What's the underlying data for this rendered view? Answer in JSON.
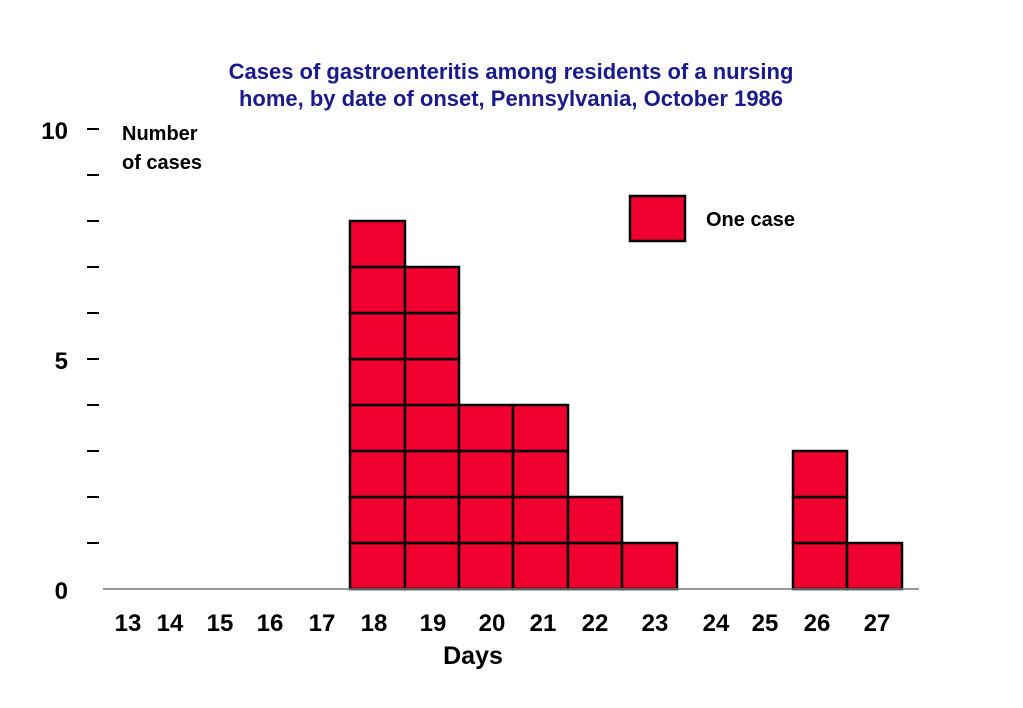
{
  "chart_data": {
    "type": "bar",
    "title": "Cases of gastroenteritis among residents of a nursing home, by date of onset, Pennsylvania, October 1986",
    "title_lines": [
      "Cases of gastroenteritis among residents of a nursing",
      "home, by date of onset, Pennsylvania, October 1986"
    ],
    "xlabel": "Days",
    "ylabel_lines": [
      "Number",
      "of cases"
    ],
    "categories": [
      "13",
      "14",
      "15",
      "16",
      "17",
      "18",
      "19",
      "20",
      "21",
      "22",
      "23",
      "24",
      "25",
      "26",
      "27"
    ],
    "values": [
      0,
      0,
      0,
      0,
      0,
      8,
      7,
      4,
      4,
      2,
      1,
      0,
      0,
      3,
      1
    ],
    "ylim": [
      0,
      10
    ],
    "y_tick_labels": [
      "0",
      "5",
      "10"
    ],
    "y_minor_ticks": [
      1,
      2,
      3,
      4,
      5,
      6,
      7,
      8,
      9,
      10
    ],
    "legend": {
      "label": "One case",
      "position": "top-right"
    },
    "grid": false,
    "colors": {
      "title": "#1a1a8c",
      "bar_fill": "#f0002e",
      "bar_stroke": "#000000",
      "axis": "#000000"
    }
  }
}
